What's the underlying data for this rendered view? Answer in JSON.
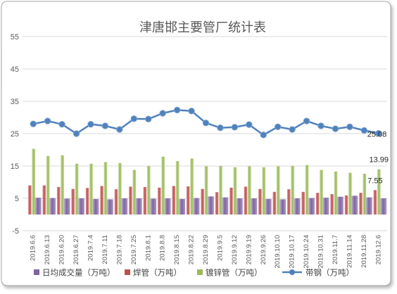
{
  "chart_data": {
    "type": "bar",
    "title": "津唐邯主要管厂统计表",
    "categories": [
      "2019.6.6",
      "2019.6.13",
      "2019.6.20",
      "2019.6.27",
      "2019.7.4",
      "2019.7.11",
      "2019.7.18",
      "2019.7.25",
      "2019.8.1",
      "2019.8.8",
      "2019.8.15",
      "2019.8.22",
      "2019.8.29",
      "2019.9.5",
      "2019.9.12",
      "2019.9.19",
      "2019.9.26",
      "2019.10.10",
      "2019.10.17",
      "2019.10.24",
      "2019.10.31",
      "2019.11.7",
      "2019.11.14",
      "2019.11.28",
      "2019.12.6"
    ],
    "ylim": [
      -5,
      55
    ],
    "y_ticks": [
      55,
      45,
      35,
      25,
      15,
      5,
      -5
    ],
    "grid": true,
    "legend_position": "bottom",
    "series": [
      {
        "name": "日均成交量（万吨）",
        "type": "bar",
        "color": "#8064A2",
        "values": [
          5.2,
          5.1,
          4.9,
          5.0,
          4.8,
          4.7,
          5.0,
          5.0,
          4.9,
          5.0,
          4.8,
          5.1,
          5.6,
          5.3,
          5.0,
          5.0,
          4.8,
          4.7,
          5.0,
          5.1,
          5.2,
          5.5,
          5.8,
          5.3,
          5.0
        ]
      },
      {
        "name": "焊管（万吨）",
        "type": "bar",
        "color": "#C0504D",
        "values": [
          9.0,
          9.0,
          8.5,
          7.9,
          8.2,
          8.8,
          7.8,
          8.6,
          8.5,
          8.3,
          8.8,
          8.7,
          7.9,
          6.9,
          8.3,
          8.6,
          7.9,
          7.0,
          7.8,
          7.0,
          6.7,
          6.3,
          5.9,
          6.7,
          7.55
        ]
      },
      {
        "name": "镀锌管（万吨）",
        "type": "bar",
        "color": "#9BBB59",
        "values": [
          20.3,
          18.1,
          18.3,
          15.7,
          15.7,
          16.2,
          15.9,
          13.8,
          15.0,
          17.9,
          16.5,
          17.3,
          14.9,
          15.0,
          14.6,
          14.9,
          14.6,
          14.9,
          15.0,
          15.3,
          13.8,
          13.3,
          12.9,
          12.6,
          13.99
        ]
      },
      {
        "name": "带钢（万吨）",
        "type": "line",
        "color": "#4F81BD",
        "values": [
          28.0,
          28.9,
          27.9,
          25.0,
          27.9,
          27.4,
          26.3,
          29.6,
          29.5,
          31.3,
          32.3,
          32.0,
          28.3,
          26.8,
          27.0,
          27.8,
          24.6,
          27.1,
          26.3,
          28.9,
          27.4,
          26.5,
          27.1,
          26.0,
          25.08
        ]
      }
    ],
    "data_labels": [
      {
        "series": "带钢（万吨）",
        "category": "2019.12.6",
        "text": "25.08"
      },
      {
        "series": "镀锌管（万吨）",
        "category": "2019.12.6",
        "text": "13.99"
      },
      {
        "series": "焊管（万吨）",
        "category": "2019.12.6",
        "text": "7.55"
      }
    ]
  }
}
